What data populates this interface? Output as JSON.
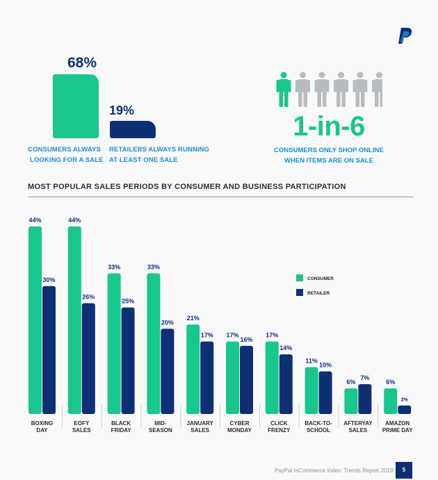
{
  "colors": {
    "consumer": "#17c78d",
    "retailer": "#0e2f74",
    "caption": "#1a8fd1",
    "person_muted": "#b9bcbf"
  },
  "logo": "paypal-logo",
  "kpis": {
    "consumer": {
      "value": "68%",
      "caption_line1": "CONSUMERS ALWAYS",
      "caption_line2": "LOOKING FOR A SALE"
    },
    "retailer": {
      "value": "19%",
      "caption_line1": "RETAILERS ALWAYS RUNNING",
      "caption_line2": "AT LEAST ONE SALE"
    }
  },
  "ratio": {
    "value": "1-in-6",
    "caption_line1": "CONSUMERS ONLY SHOP ONLINE",
    "caption_line2": "WHEN ITEMS ARE ON SALE",
    "people_total": 6,
    "people_highlighted": 1
  },
  "section_title": "MOST POPULAR SALES PERIODS BY CONSUMER AND BUSINESS PARTICIPATION",
  "chart_data": {
    "type": "bar",
    "title": "MOST POPULAR SALES PERIODS BY CONSUMER AND BUSINESS PARTICIPATION",
    "categories": [
      [
        "BOXING",
        "DAY"
      ],
      [
        "EOFY",
        "SALES"
      ],
      [
        "BLACK",
        "FRIDAY"
      ],
      [
        "MID-",
        "SEASON"
      ],
      [
        "JANUARY",
        "SALES"
      ],
      [
        "CYBER",
        "MONDAY"
      ],
      [
        "CLICK",
        "FRENZY"
      ],
      [
        "BACK-TO-",
        "SCHOOL"
      ],
      [
        "AFTERYAY",
        "SALES"
      ],
      [
        "AMAZON",
        "PRIME DAY"
      ]
    ],
    "series": [
      {
        "name": "CONSUMER",
        "values": [
          44,
          44,
          33,
          33,
          21,
          17,
          17,
          11,
          6,
          6
        ],
        "labels": [
          "44%",
          "44%",
          "33%",
          "33%",
          "21%",
          "17%",
          "17%",
          "11%",
          "6%",
          "6%"
        ]
      },
      {
        "name": "RETAILER",
        "values": [
          30,
          26,
          25,
          20,
          17,
          16,
          14,
          10,
          7,
          2
        ],
        "labels": [
          "30%",
          "26%",
          "25%",
          "20%",
          "17%",
          "16%",
          "14%",
          "10%",
          "7%",
          "2%"
        ]
      }
    ],
    "ylim": [
      0,
      44
    ],
    "grid": false,
    "legend": "right"
  },
  "footer": {
    "text": "PayPal mCommerce Index: Trends Report 2019",
    "page": "5"
  }
}
